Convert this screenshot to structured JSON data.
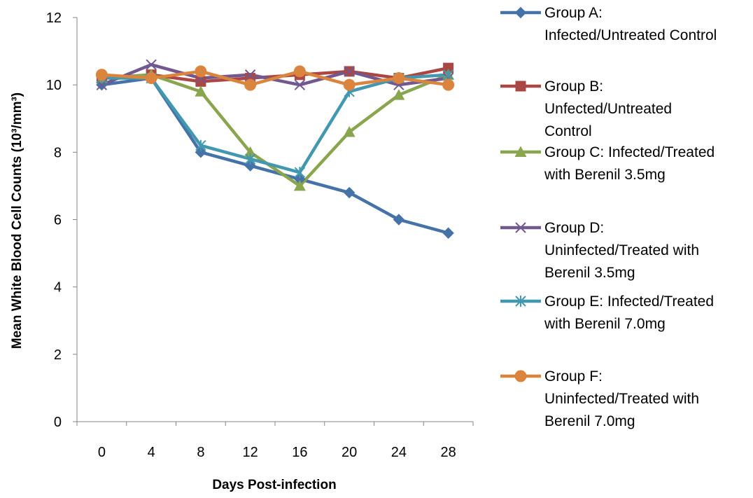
{
  "chart_data": {
    "type": "line",
    "xlabel": "Days Post-infection",
    "ylabel": "Mean White Blood Cell Counts (10³/mm³)",
    "categories": [
      "0",
      "4",
      "8",
      "12",
      "16",
      "20",
      "24",
      "28"
    ],
    "ylim": [
      0,
      12
    ],
    "yticks": [
      "0",
      "2",
      "4",
      "6",
      "8",
      "10",
      "12"
    ],
    "grid": false,
    "legend_position": "right",
    "series": [
      {
        "name": "Group A: Infected/Untreated Control",
        "legend_lines": [
          "Group A:",
          "Infected/Untreated Control"
        ],
        "color": "#4572A7",
        "marker": "diamond",
        "values": [
          10.0,
          10.2,
          8.0,
          7.6,
          7.2,
          6.8,
          6.0,
          5.6
        ]
      },
      {
        "name": "Group B: Unfected/Untreated Control",
        "legend_lines": [
          "Group B:",
          "Unfected/Untreated",
          "Control"
        ],
        "color": "#AA4643",
        "marker": "square",
        "values": [
          10.2,
          10.3,
          10.1,
          10.2,
          10.3,
          10.4,
          10.2,
          10.5
        ]
      },
      {
        "name": "Group C: Infected/Treated with Berenil 3.5mg",
        "legend_lines": [
          "Group C: Infected/Treated",
          "with Berenil 3.5mg"
        ],
        "color": "#89A54E",
        "marker": "triangle",
        "values": [
          10.2,
          10.3,
          9.8,
          8.0,
          7.0,
          8.6,
          9.7,
          10.3
        ]
      },
      {
        "name": "Group D: Uninfected/Treated with Berenil 3.5mg",
        "legend_lines": [
          "Group D:",
          "Uninfected/Treated with",
          "Berenil 3.5mg"
        ],
        "color": "#71588F",
        "marker": "x",
        "values": [
          10.0,
          10.6,
          10.2,
          10.3,
          10.0,
          10.4,
          10.0,
          10.2
        ]
      },
      {
        "name": "Group E: Infected/Treated with Berenil 7.0mg",
        "legend_lines": [
          "Group E: Infected/Treated",
          "with Berenil 7.0mg"
        ],
        "color": "#4198AF",
        "marker": "star",
        "values": [
          10.2,
          10.2,
          8.2,
          7.8,
          7.4,
          9.8,
          10.2,
          10.3
        ]
      },
      {
        "name": "Group F: Uninfected/Treated with Berenil 7.0mg",
        "legend_lines": [
          "Group F:",
          "Uninfected/Treated with",
          "Berenil 7.0mg"
        ],
        "color": "#DB843D",
        "marker": "circle",
        "values": [
          10.3,
          10.2,
          10.4,
          10.0,
          10.4,
          10.0,
          10.2,
          10.0
        ]
      }
    ]
  }
}
